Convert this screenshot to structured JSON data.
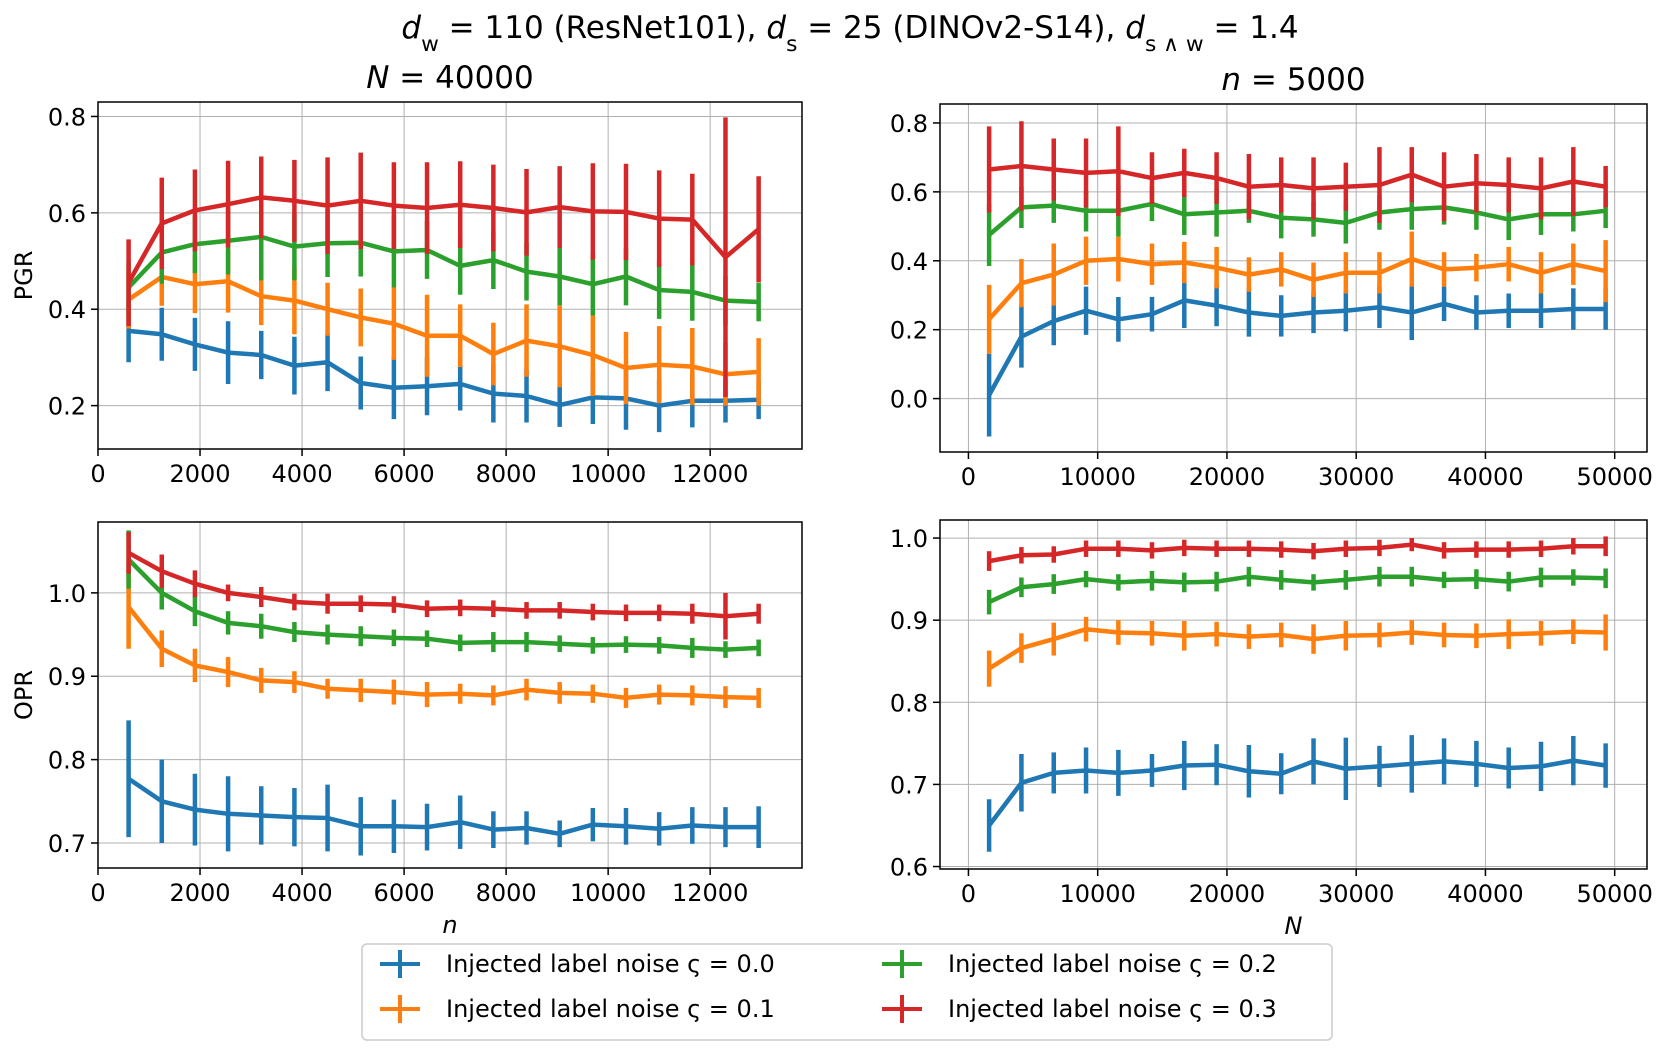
{
  "figure": {
    "suptitle_parts": [
      {
        "t": "d",
        "it": true
      },
      {
        "t": "w",
        "sub": true
      },
      {
        "t": " = 110 (ResNet101), "
      },
      {
        "t": "d",
        "it": true
      },
      {
        "t": "s",
        "sub": true
      },
      {
        "t": " = 25 (DINOv2-S14), "
      },
      {
        "t": "d",
        "it": true
      },
      {
        "t": "s ∧ w",
        "sub": true
      },
      {
        "t": " = 1.4"
      }
    ]
  },
  "colors": {
    "noise_0_0": "#1f77b4",
    "noise_0_1": "#ff7f0e",
    "noise_0_2": "#2ca02c",
    "noise_0_3": "#d62728"
  },
  "legend": {
    "labels": [
      "Injected label noise ς = 0.0",
      "Injected label noise ς = 0.1",
      "Injected label noise ς = 0.2",
      "Injected label noise ς = 0.3"
    ]
  },
  "chart_data": [
    {
      "id": "pgr_vs_n",
      "type": "line",
      "title_var": "N",
      "title_val": " = 40000",
      "xlabel": "",
      "ylabel": "PGR",
      "xlim": [
        0,
        13800
      ],
      "ylim": [
        0.11,
        0.83
      ],
      "xticks": [
        0,
        2000,
        4000,
        6000,
        8000,
        10000,
        12000
      ],
      "xtick_labels": [
        "0",
        "2000",
        "4000",
        "6000",
        "8000",
        "10000",
        "12000"
      ],
      "yticks": [
        0.2,
        0.4,
        0.6,
        0.8
      ],
      "ytick_labels": [
        "0.2",
        "0.4",
        "0.6",
        "0.8"
      ],
      "grid": true,
      "x": [
        600,
        1250,
        1900,
        2550,
        3200,
        3850,
        4500,
        5150,
        5800,
        6450,
        7100,
        7750,
        8400,
        9050,
        9700,
        10350,
        11000,
        11650,
        12300,
        12950
      ],
      "series": [
        {
          "name": "Injected label noise ς = 0.0",
          "values": [
            0.355,
            0.348,
            0.327,
            0.31,
            0.305,
            0.283,
            0.29,
            0.247,
            0.237,
            0.24,
            0.245,
            0.225,
            0.22,
            0.201,
            0.217,
            0.215,
            0.2,
            0.21,
            0.21,
            0.212
          ],
          "errors": [
            0.065,
            0.055,
            0.055,
            0.065,
            0.05,
            0.06,
            0.06,
            0.055,
            0.065,
            0.06,
            0.055,
            0.06,
            0.055,
            0.045,
            0.055,
            0.065,
            0.055,
            0.055,
            0.045,
            0.04
          ]
        },
        {
          "name": "Injected label noise ς = 0.1",
          "values": [
            0.42,
            0.467,
            0.452,
            0.458,
            0.427,
            0.418,
            0.4,
            0.383,
            0.37,
            0.345,
            0.345,
            0.307,
            0.335,
            0.323,
            0.305,
            0.278,
            0.285,
            0.281,
            0.265,
            0.27
          ],
          "errors": [
            0.06,
            0.06,
            0.06,
            0.065,
            0.06,
            0.07,
            0.055,
            0.06,
            0.075,
            0.085,
            0.065,
            0.065,
            0.075,
            0.085,
            0.085,
            0.075,
            0.08,
            0.08,
            0.065,
            0.07
          ]
        },
        {
          "name": "Injected label noise ς = 0.2",
          "values": [
            0.445,
            0.518,
            0.535,
            0.542,
            0.55,
            0.53,
            0.537,
            0.538,
            0.52,
            0.523,
            0.49,
            0.502,
            0.478,
            0.468,
            0.452,
            0.468,
            0.44,
            0.436,
            0.418,
            0.415
          ],
          "errors": [
            0.055,
            0.065,
            0.06,
            0.07,
            0.09,
            0.07,
            0.07,
            0.07,
            0.075,
            0.06,
            0.06,
            0.06,
            0.06,
            0.06,
            0.065,
            0.06,
            0.06,
            0.06,
            0.05,
            0.04
          ]
        },
        {
          "name": "Injected label noise ς = 0.3",
          "values": [
            0.455,
            0.578,
            0.605,
            0.618,
            0.632,
            0.625,
            0.615,
            0.625,
            0.615,
            0.61,
            0.617,
            0.61,
            0.601,
            0.612,
            0.603,
            0.602,
            0.588,
            0.586,
            0.508,
            0.566
          ],
          "errors": [
            0.09,
            0.095,
            0.085,
            0.09,
            0.085,
            0.085,
            0.1,
            0.1,
            0.09,
            0.095,
            0.09,
            0.09,
            0.09,
            0.085,
            0.1,
            0.1,
            0.1,
            0.095,
            0.29,
            0.11
          ]
        }
      ]
    },
    {
      "id": "pgr_vs_N",
      "type": "line",
      "title_var": "n",
      "title_val": " = 5000",
      "xlabel": "",
      "ylabel": "",
      "xlim": [
        -2200,
        52500
      ],
      "ylim": [
        -0.155,
        0.855
      ],
      "xticks": [
        0,
        10000,
        20000,
        30000,
        40000,
        50000
      ],
      "xtick_labels": [
        "0",
        "10000",
        "20000",
        "30000",
        "40000",
        "50000"
      ],
      "yticks": [
        0.0,
        0.2,
        0.4,
        0.6,
        0.8
      ],
      "ytick_labels": [
        "0.0",
        "0.2",
        "0.4",
        "0.6",
        "0.8"
      ],
      "grid": true,
      "x": [
        1600,
        4100,
        6600,
        9100,
        11600,
        14200,
        16700,
        19200,
        21700,
        24200,
        26700,
        29200,
        31800,
        34300,
        36800,
        39300,
        41800,
        44300,
        46800,
        49300
      ],
      "series": [
        {
          "name": "Injected label noise ς = 0.0",
          "values": [
            0.01,
            0.18,
            0.225,
            0.255,
            0.23,
            0.245,
            0.285,
            0.27,
            0.25,
            0.24,
            0.25,
            0.255,
            0.265,
            0.25,
            0.275,
            0.25,
            0.255,
            0.255,
            0.26,
            0.26
          ],
          "errors": [
            0.12,
            0.09,
            0.07,
            0.07,
            0.065,
            0.05,
            0.08,
            0.06,
            0.07,
            0.06,
            0.06,
            0.06,
            0.06,
            0.08,
            0.05,
            0.05,
            0.05,
            0.05,
            0.06,
            0.06
          ]
        },
        {
          "name": "Injected label noise ς = 0.1",
          "values": [
            0.23,
            0.335,
            0.36,
            0.4,
            0.405,
            0.39,
            0.395,
            0.38,
            0.36,
            0.375,
            0.345,
            0.365,
            0.365,
            0.405,
            0.375,
            0.38,
            0.39,
            0.365,
            0.39,
            0.37
          ],
          "errors": [
            0.1,
            0.07,
            0.09,
            0.07,
            0.065,
            0.06,
            0.06,
            0.06,
            0.05,
            0.05,
            0.05,
            0.06,
            0.06,
            0.08,
            0.05,
            0.04,
            0.05,
            0.06,
            0.06,
            0.09
          ]
        },
        {
          "name": "Injected label noise ς = 0.2",
          "values": [
            0.475,
            0.555,
            0.56,
            0.545,
            0.545,
            0.565,
            0.535,
            0.54,
            0.545,
            0.525,
            0.52,
            0.51,
            0.54,
            0.55,
            0.555,
            0.54,
            0.52,
            0.535,
            0.535,
            0.545
          ],
          "errors": [
            0.09,
            0.06,
            0.05,
            0.06,
            0.075,
            0.05,
            0.06,
            0.07,
            0.035,
            0.06,
            0.05,
            0.06,
            0.05,
            0.06,
            0.05,
            0.05,
            0.06,
            0.06,
            0.05,
            0.05
          ]
        },
        {
          "name": "Injected label noise ς = 0.3",
          "values": [
            0.665,
            0.675,
            0.665,
            0.655,
            0.66,
            0.64,
            0.655,
            0.64,
            0.615,
            0.62,
            0.61,
            0.615,
            0.62,
            0.65,
            0.615,
            0.625,
            0.62,
            0.61,
            0.63,
            0.615
          ],
          "errors": [
            0.125,
            0.13,
            0.09,
            0.1,
            0.13,
            0.075,
            0.07,
            0.075,
            0.095,
            0.08,
            0.09,
            0.07,
            0.11,
            0.08,
            0.1,
            0.085,
            0.08,
            0.09,
            0.1,
            0.06
          ]
        }
      ]
    },
    {
      "id": "opr_vs_n",
      "type": "line",
      "title_var": "",
      "title_val": "",
      "xlabel": "n",
      "ylabel": "OPR",
      "xlim": [
        0,
        13800
      ],
      "ylim": [
        0.67,
        1.085
      ],
      "xticks": [
        0,
        2000,
        4000,
        6000,
        8000,
        10000,
        12000
      ],
      "xtick_labels": [
        "0",
        "2000",
        "4000",
        "6000",
        "8000",
        "10000",
        "12000"
      ],
      "yticks": [
        0.7,
        0.8,
        0.9,
        1.0
      ],
      "ytick_labels": [
        "0.7",
        "0.8",
        "0.9",
        "1.0"
      ],
      "grid": true,
      "x": [
        600,
        1250,
        1900,
        2550,
        3200,
        3850,
        4500,
        5150,
        5800,
        6450,
        7100,
        7750,
        8400,
        9050,
        9700,
        10350,
        11000,
        11650,
        12300,
        12950
      ],
      "series": [
        {
          "name": "Injected label noise ς = 0.0",
          "values": [
            0.777,
            0.75,
            0.74,
            0.735,
            0.733,
            0.731,
            0.73,
            0.72,
            0.72,
            0.719,
            0.725,
            0.716,
            0.718,
            0.711,
            0.722,
            0.72,
            0.717,
            0.721,
            0.719,
            0.719
          ],
          "errors": [
            0.07,
            0.05,
            0.043,
            0.045,
            0.035,
            0.035,
            0.04,
            0.035,
            0.032,
            0.028,
            0.032,
            0.022,
            0.02,
            0.016,
            0.02,
            0.022,
            0.02,
            0.022,
            0.024,
            0.025
          ]
        },
        {
          "name": "Injected label noise ς = 0.1",
          "values": [
            0.983,
            0.933,
            0.913,
            0.905,
            0.895,
            0.893,
            0.885,
            0.883,
            0.881,
            0.878,
            0.879,
            0.877,
            0.884,
            0.88,
            0.879,
            0.874,
            0.878,
            0.877,
            0.875,
            0.874
          ],
          "errors": [
            0.05,
            0.022,
            0.02,
            0.018,
            0.015,
            0.013,
            0.012,
            0.014,
            0.015,
            0.015,
            0.012,
            0.012,
            0.013,
            0.013,
            0.011,
            0.012,
            0.012,
            0.012,
            0.013,
            0.012
          ]
        },
        {
          "name": "Injected label noise ς = 0.2",
          "values": [
            1.04,
            1.0,
            0.978,
            0.964,
            0.96,
            0.953,
            0.95,
            0.948,
            0.946,
            0.945,
            0.94,
            0.941,
            0.941,
            0.939,
            0.937,
            0.938,
            0.937,
            0.934,
            0.932,
            0.934
          ],
          "errors": [
            0.035,
            0.02,
            0.018,
            0.014,
            0.015,
            0.012,
            0.012,
            0.012,
            0.01,
            0.01,
            0.01,
            0.012,
            0.012,
            0.01,
            0.01,
            0.01,
            0.01,
            0.012,
            0.01,
            0.01
          ]
        },
        {
          "name": "Injected label noise ς = 0.3",
          "values": [
            1.048,
            1.026,
            1.011,
            1.0,
            0.995,
            0.989,
            0.987,
            0.987,
            0.986,
            0.981,
            0.982,
            0.981,
            0.979,
            0.979,
            0.977,
            0.976,
            0.976,
            0.975,
            0.972,
            0.975
          ],
          "errors": [
            0.025,
            0.02,
            0.016,
            0.01,
            0.012,
            0.01,
            0.012,
            0.01,
            0.01,
            0.01,
            0.01,
            0.01,
            0.01,
            0.01,
            0.01,
            0.01,
            0.01,
            0.012,
            0.028,
            0.012
          ]
        }
      ]
    },
    {
      "id": "opr_vs_N",
      "type": "line",
      "title_var": "",
      "title_val": "",
      "xlabel": "N",
      "ylabel": "",
      "xlim": [
        -2200,
        52500
      ],
      "ylim": [
        0.597,
        1.022
      ],
      "xticks": [
        0,
        10000,
        20000,
        30000,
        40000,
        50000
      ],
      "xtick_labels": [
        "0",
        "10000",
        "20000",
        "30000",
        "40000",
        "50000"
      ],
      "yticks": [
        0.6,
        0.7,
        0.8,
        0.9,
        1.0
      ],
      "ytick_labels": [
        "0.6",
        "0.7",
        "0.8",
        "0.9",
        "1.0"
      ],
      "grid": true,
      "x": [
        1600,
        4100,
        6600,
        9100,
        11600,
        14200,
        16700,
        19200,
        21700,
        24200,
        26700,
        29200,
        31800,
        34300,
        36800,
        39300,
        41800,
        44300,
        46800,
        49300
      ],
      "series": [
        {
          "name": "Injected label noise ς = 0.0",
          "values": [
            0.65,
            0.702,
            0.714,
            0.717,
            0.714,
            0.717,
            0.723,
            0.724,
            0.716,
            0.713,
            0.728,
            0.719,
            0.722,
            0.725,
            0.728,
            0.725,
            0.72,
            0.722,
            0.729,
            0.723
          ],
          "errors": [
            0.032,
            0.035,
            0.025,
            0.028,
            0.028,
            0.02,
            0.03,
            0.025,
            0.032,
            0.025,
            0.028,
            0.038,
            0.025,
            0.035,
            0.028,
            0.028,
            0.025,
            0.03,
            0.03,
            0.027
          ]
        },
        {
          "name": "Injected label noise ς = 0.1",
          "values": [
            0.841,
            0.866,
            0.877,
            0.889,
            0.885,
            0.884,
            0.881,
            0.883,
            0.88,
            0.882,
            0.877,
            0.881,
            0.882,
            0.885,
            0.882,
            0.881,
            0.883,
            0.884,
            0.886,
            0.885
          ],
          "errors": [
            0.022,
            0.018,
            0.02,
            0.015,
            0.015,
            0.015,
            0.018,
            0.015,
            0.015,
            0.015,
            0.018,
            0.018,
            0.015,
            0.015,
            0.015,
            0.015,
            0.018,
            0.015,
            0.015,
            0.022
          ]
        },
        {
          "name": "Injected label noise ς = 0.2",
          "values": [
            0.922,
            0.94,
            0.944,
            0.95,
            0.946,
            0.948,
            0.946,
            0.947,
            0.953,
            0.949,
            0.946,
            0.949,
            0.953,
            0.953,
            0.949,
            0.95,
            0.947,
            0.952,
            0.952,
            0.951
          ],
          "errors": [
            0.015,
            0.012,
            0.012,
            0.01,
            0.01,
            0.012,
            0.012,
            0.012,
            0.012,
            0.012,
            0.01,
            0.012,
            0.012,
            0.012,
            0.01,
            0.012,
            0.012,
            0.012,
            0.01,
            0.012
          ]
        },
        {
          "name": "Injected label noise ς = 0.3",
          "values": [
            0.972,
            0.979,
            0.98,
            0.987,
            0.987,
            0.985,
            0.988,
            0.987,
            0.987,
            0.986,
            0.984,
            0.987,
            0.988,
            0.992,
            0.985,
            0.986,
            0.986,
            0.987,
            0.99,
            0.99
          ],
          "errors": [
            0.012,
            0.01,
            0.01,
            0.01,
            0.01,
            0.01,
            0.01,
            0.01,
            0.01,
            0.01,
            0.01,
            0.01,
            0.01,
            0.008,
            0.01,
            0.01,
            0.01,
            0.01,
            0.01,
            0.012
          ]
        }
      ]
    }
  ]
}
